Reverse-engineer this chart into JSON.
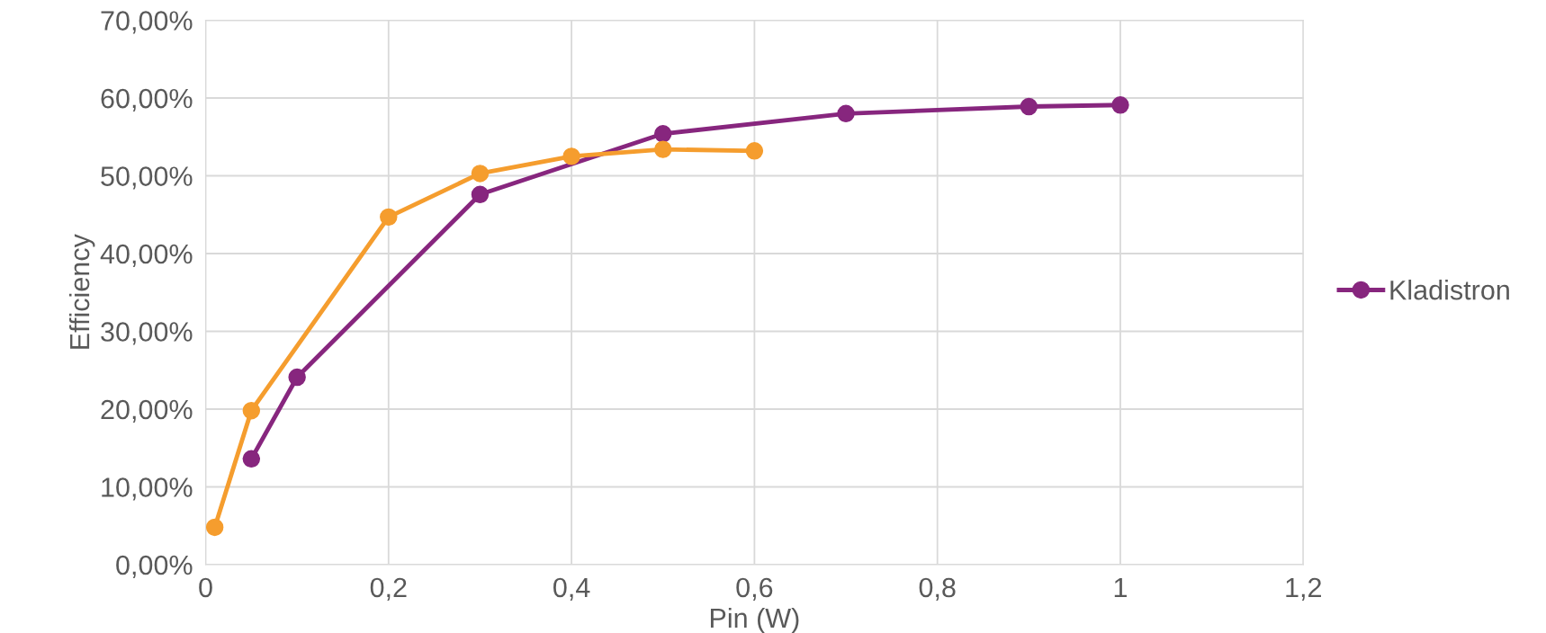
{
  "chart_data": {
    "type": "line",
    "xlabel": "Pin (W)",
    "ylabel": "Efficiency",
    "series": [
      {
        "name": "Kladistron",
        "color": "#87267e",
        "x": [
          0.05,
          0.1,
          0.3,
          0.5,
          0.7,
          0.9,
          1.0
        ],
        "values": [
          13.6,
          24.1,
          47.6,
          55.4,
          58.0,
          58.9,
          59.1
        ]
      },
      {
        "color": "#f59d2e",
        "x": [
          0.01,
          0.05,
          0.2,
          0.3,
          0.4,
          0.5,
          0.6
        ],
        "values": [
          4.8,
          19.8,
          44.7,
          50.3,
          52.5,
          53.4,
          53.2
        ]
      }
    ],
    "xlim": [
      0,
      1.2
    ],
    "xticks": [
      0,
      {
        "value": 0.2,
        "label": "0,2"
      },
      {
        "value": 0.4,
        "label": "0,4"
      },
      {
        "value": 0.6,
        "label": "0,6"
      },
      {
        "value": 0.8,
        "label": "0,8"
      },
      1,
      {
        "value": 1.2,
        "label": "1,2"
      }
    ],
    "ylim": [
      0,
      70
    ],
    "yticks": [
      {
        "value": 0,
        "label": "0,00%"
      },
      {
        "value": 10,
        "label": "10,00%"
      },
      {
        "value": 20,
        "label": "20,00%"
      },
      {
        "value": 30,
        "label": "30,00%"
      },
      {
        "value": 40,
        "label": "40,00%"
      },
      {
        "value": 50,
        "label": "50,00%"
      },
      {
        "value": 60,
        "label": "60,00%"
      },
      {
        "value": 70,
        "label": "70,00%"
      }
    ],
    "grid": true,
    "legend": "right",
    "marker": "circle",
    "line_style": "solid"
  }
}
